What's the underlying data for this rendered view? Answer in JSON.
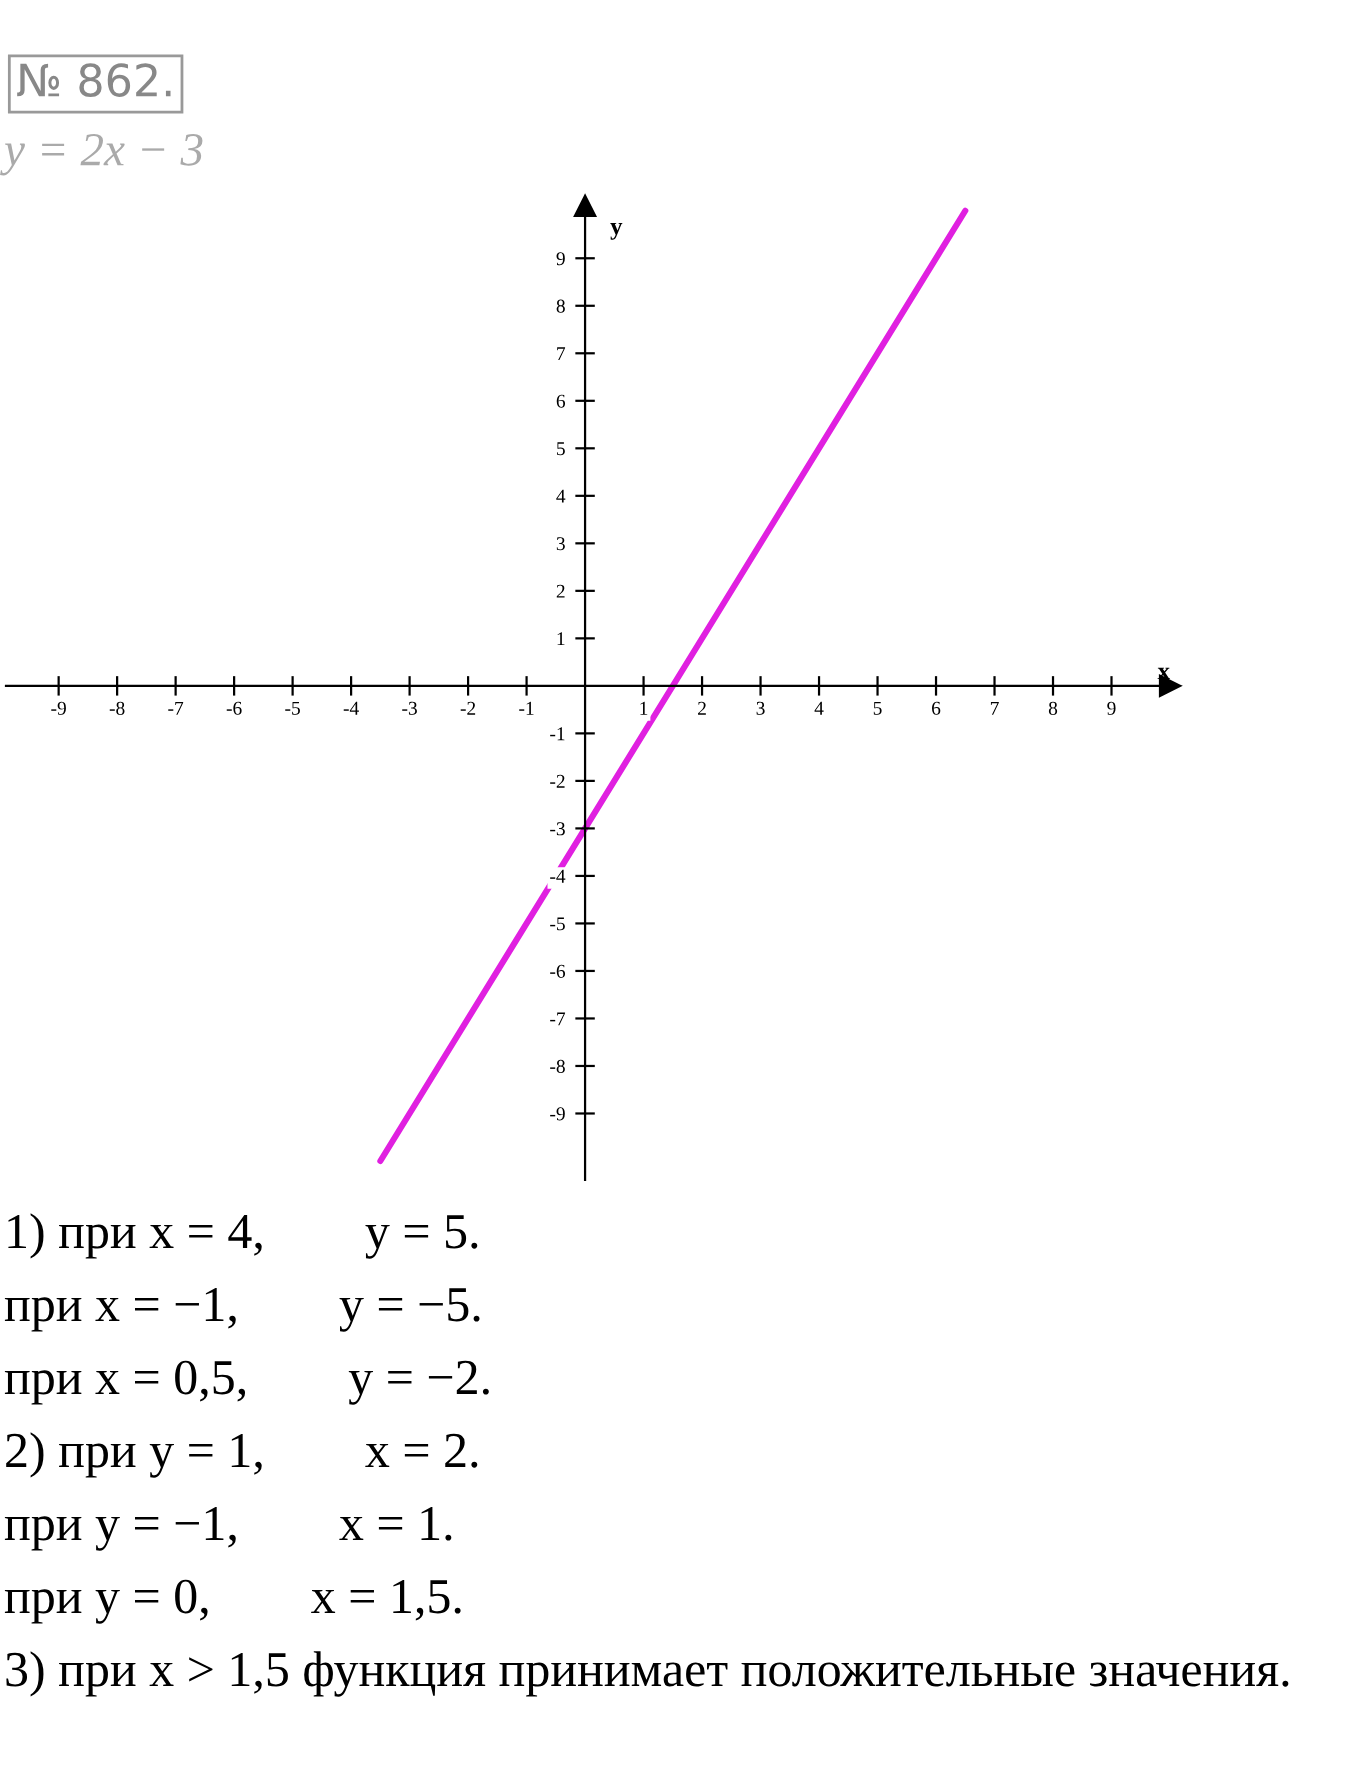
{
  "chart_data": {
    "type": "line",
    "title": "№ 862.",
    "subtitle": "y = 2x − 3",
    "xlabel": "x",
    "ylabel": "y",
    "x": [
      -3.5,
      6.5
    ],
    "series": [
      {
        "color": "#e020e0",
        "values": [
          -10,
          10
        ]
      }
    ],
    "xlim": [
      -9.9,
      10
    ],
    "ylim": [
      -10.4,
      10.1
    ],
    "xticks": [
      -9,
      -8,
      -7,
      -6,
      -5,
      -4,
      -3,
      -2,
      -1,
      1,
      2,
      3,
      4,
      5,
      6,
      7,
      8,
      9
    ],
    "yticks": [
      -9,
      -8,
      -7,
      -6,
      -5,
      -4,
      -3,
      -2,
      -1,
      1,
      2,
      3,
      4,
      5,
      6,
      7,
      8,
      9
    ],
    "grid": false,
    "annotations": [
      "1) при x = 4,        y = 5.",
      "при x = −1,        y = −5.",
      "при x = 0,5,        y = −2.",
      "2) при y = 1,        x = 2.",
      "при y = −1,        x = 1.",
      "при y = 0,        x = 1,5.",
      "3) при x > 1,5 функция принимает положительные значения."
    ]
  }
}
